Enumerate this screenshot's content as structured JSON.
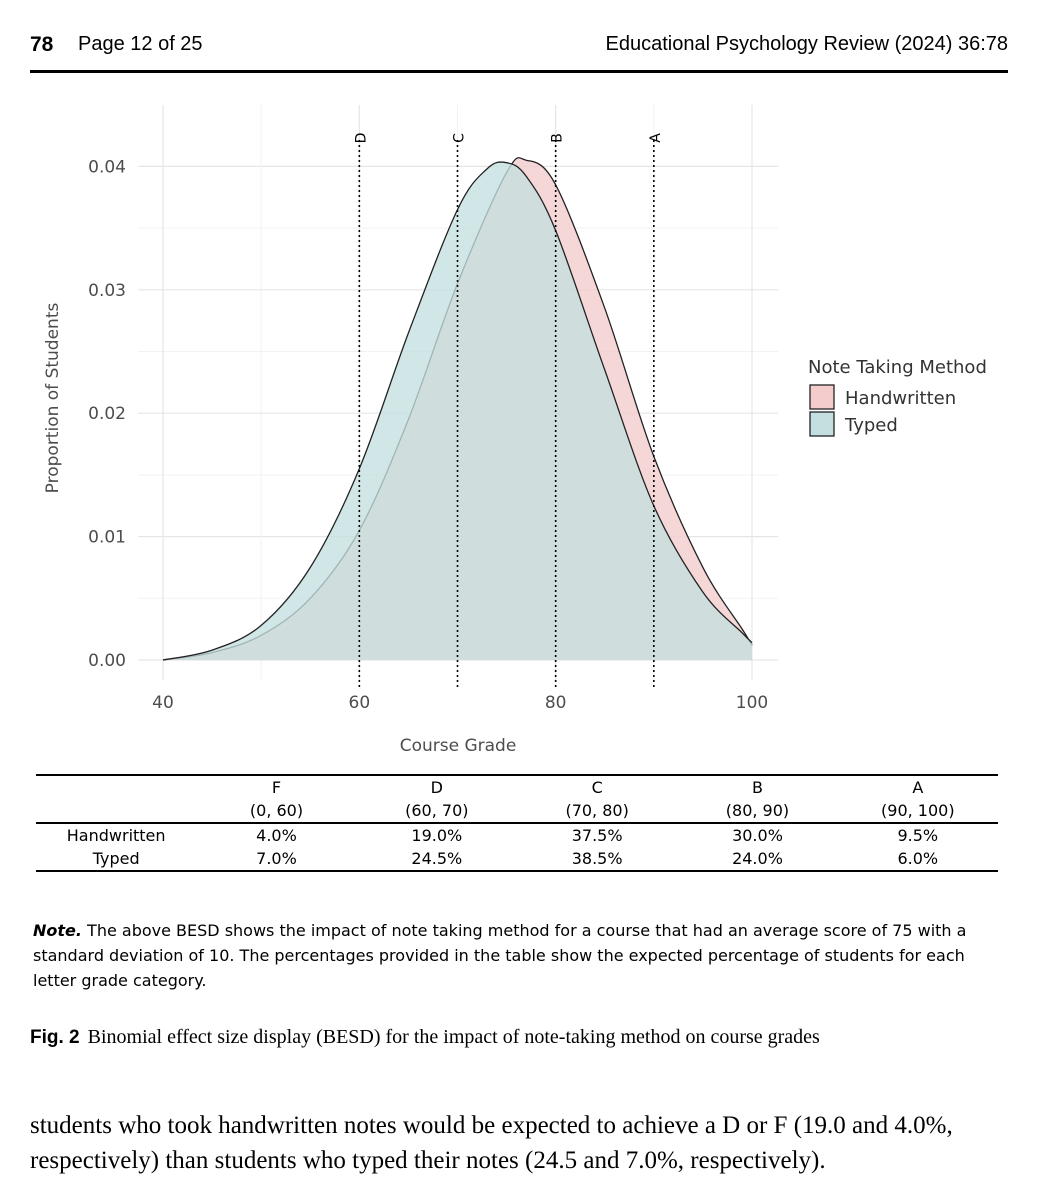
{
  "header": {
    "page_number": "78",
    "page_of": "Page 12 of 25",
    "journal": "Educational Psychology Review (2024) 36:78"
  },
  "chart_data": {
    "type": "area",
    "title": "",
    "xlabel": "Course Grade",
    "ylabel": "Proportion of Students",
    "xlim": [
      40,
      100
    ],
    "ylim": [
      0,
      0.045
    ],
    "x_ticks": [
      "40",
      "60",
      "80",
      "100"
    ],
    "y_ticks": [
      "0.00",
      "0.01",
      "0.02",
      "0.03",
      "0.04"
    ],
    "grid": true,
    "grade_cutoffs": [
      {
        "label": "D",
        "x": 60
      },
      {
        "label": "C",
        "x": 70
      },
      {
        "label": "B",
        "x": 80
      },
      {
        "label": "A",
        "x": 90
      }
    ],
    "legend_title": "Note Taking Method",
    "legend_position": "right",
    "series": [
      {
        "name": "Handwritten",
        "color": "#f4cccc",
        "x": [
          40,
          45,
          50,
          55,
          60,
          65,
          70,
          75,
          77,
          80,
          85,
          90,
          95,
          99,
          100
        ],
        "y": [
          0.0,
          0.0006,
          0.002,
          0.005,
          0.0105,
          0.0195,
          0.0305,
          0.0395,
          0.0405,
          0.0385,
          0.0285,
          0.0165,
          0.0075,
          0.0025,
          0.0012
        ]
      },
      {
        "name": "Typed",
        "color": "#c4dfdf",
        "x": [
          40,
          45,
          50,
          55,
          60,
          65,
          70,
          73,
          75,
          77,
          80,
          85,
          90,
          95,
          99,
          100
        ],
        "y": [
          0.0,
          0.0008,
          0.0028,
          0.0075,
          0.0155,
          0.0265,
          0.0365,
          0.0398,
          0.0403,
          0.0392,
          0.0348,
          0.0235,
          0.0125,
          0.0055,
          0.0022,
          0.0014
        ]
      }
    ]
  },
  "table": {
    "columns": [
      {
        "grade": "F",
        "range": "(0, 60)"
      },
      {
        "grade": "D",
        "range": "(60, 70)"
      },
      {
        "grade": "C",
        "range": "(70, 80)"
      },
      {
        "grade": "B",
        "range": "(80, 90)"
      },
      {
        "grade": "A",
        "range": "(90, 100)"
      }
    ],
    "rows": [
      {
        "label": "Handwritten",
        "values": [
          "4.0%",
          "19.0%",
          "37.5%",
          "30.0%",
          "9.5%"
        ]
      },
      {
        "label": "Typed",
        "values": [
          "7.0%",
          "24.5%",
          "38.5%",
          "24.0%",
          "6.0%"
        ]
      }
    ]
  },
  "note": {
    "label": "Note.",
    "text": " The above BESD shows the impact of note taking method for a course that had an average score of 75 with a standard deviation of 10.  The percentages provided in the table show the expected percentage of students for each letter grade category."
  },
  "caption": {
    "label": "Fig. 2",
    "text": "Binomial effect size display (BESD) for the impact of note-taking method on course grades"
  },
  "body": {
    "text": "students who took handwritten notes would be expected to achieve a D or F (19.0 and 4.0%, respectively) than students who typed their notes (24.5 and 7.0%, respectively)."
  }
}
